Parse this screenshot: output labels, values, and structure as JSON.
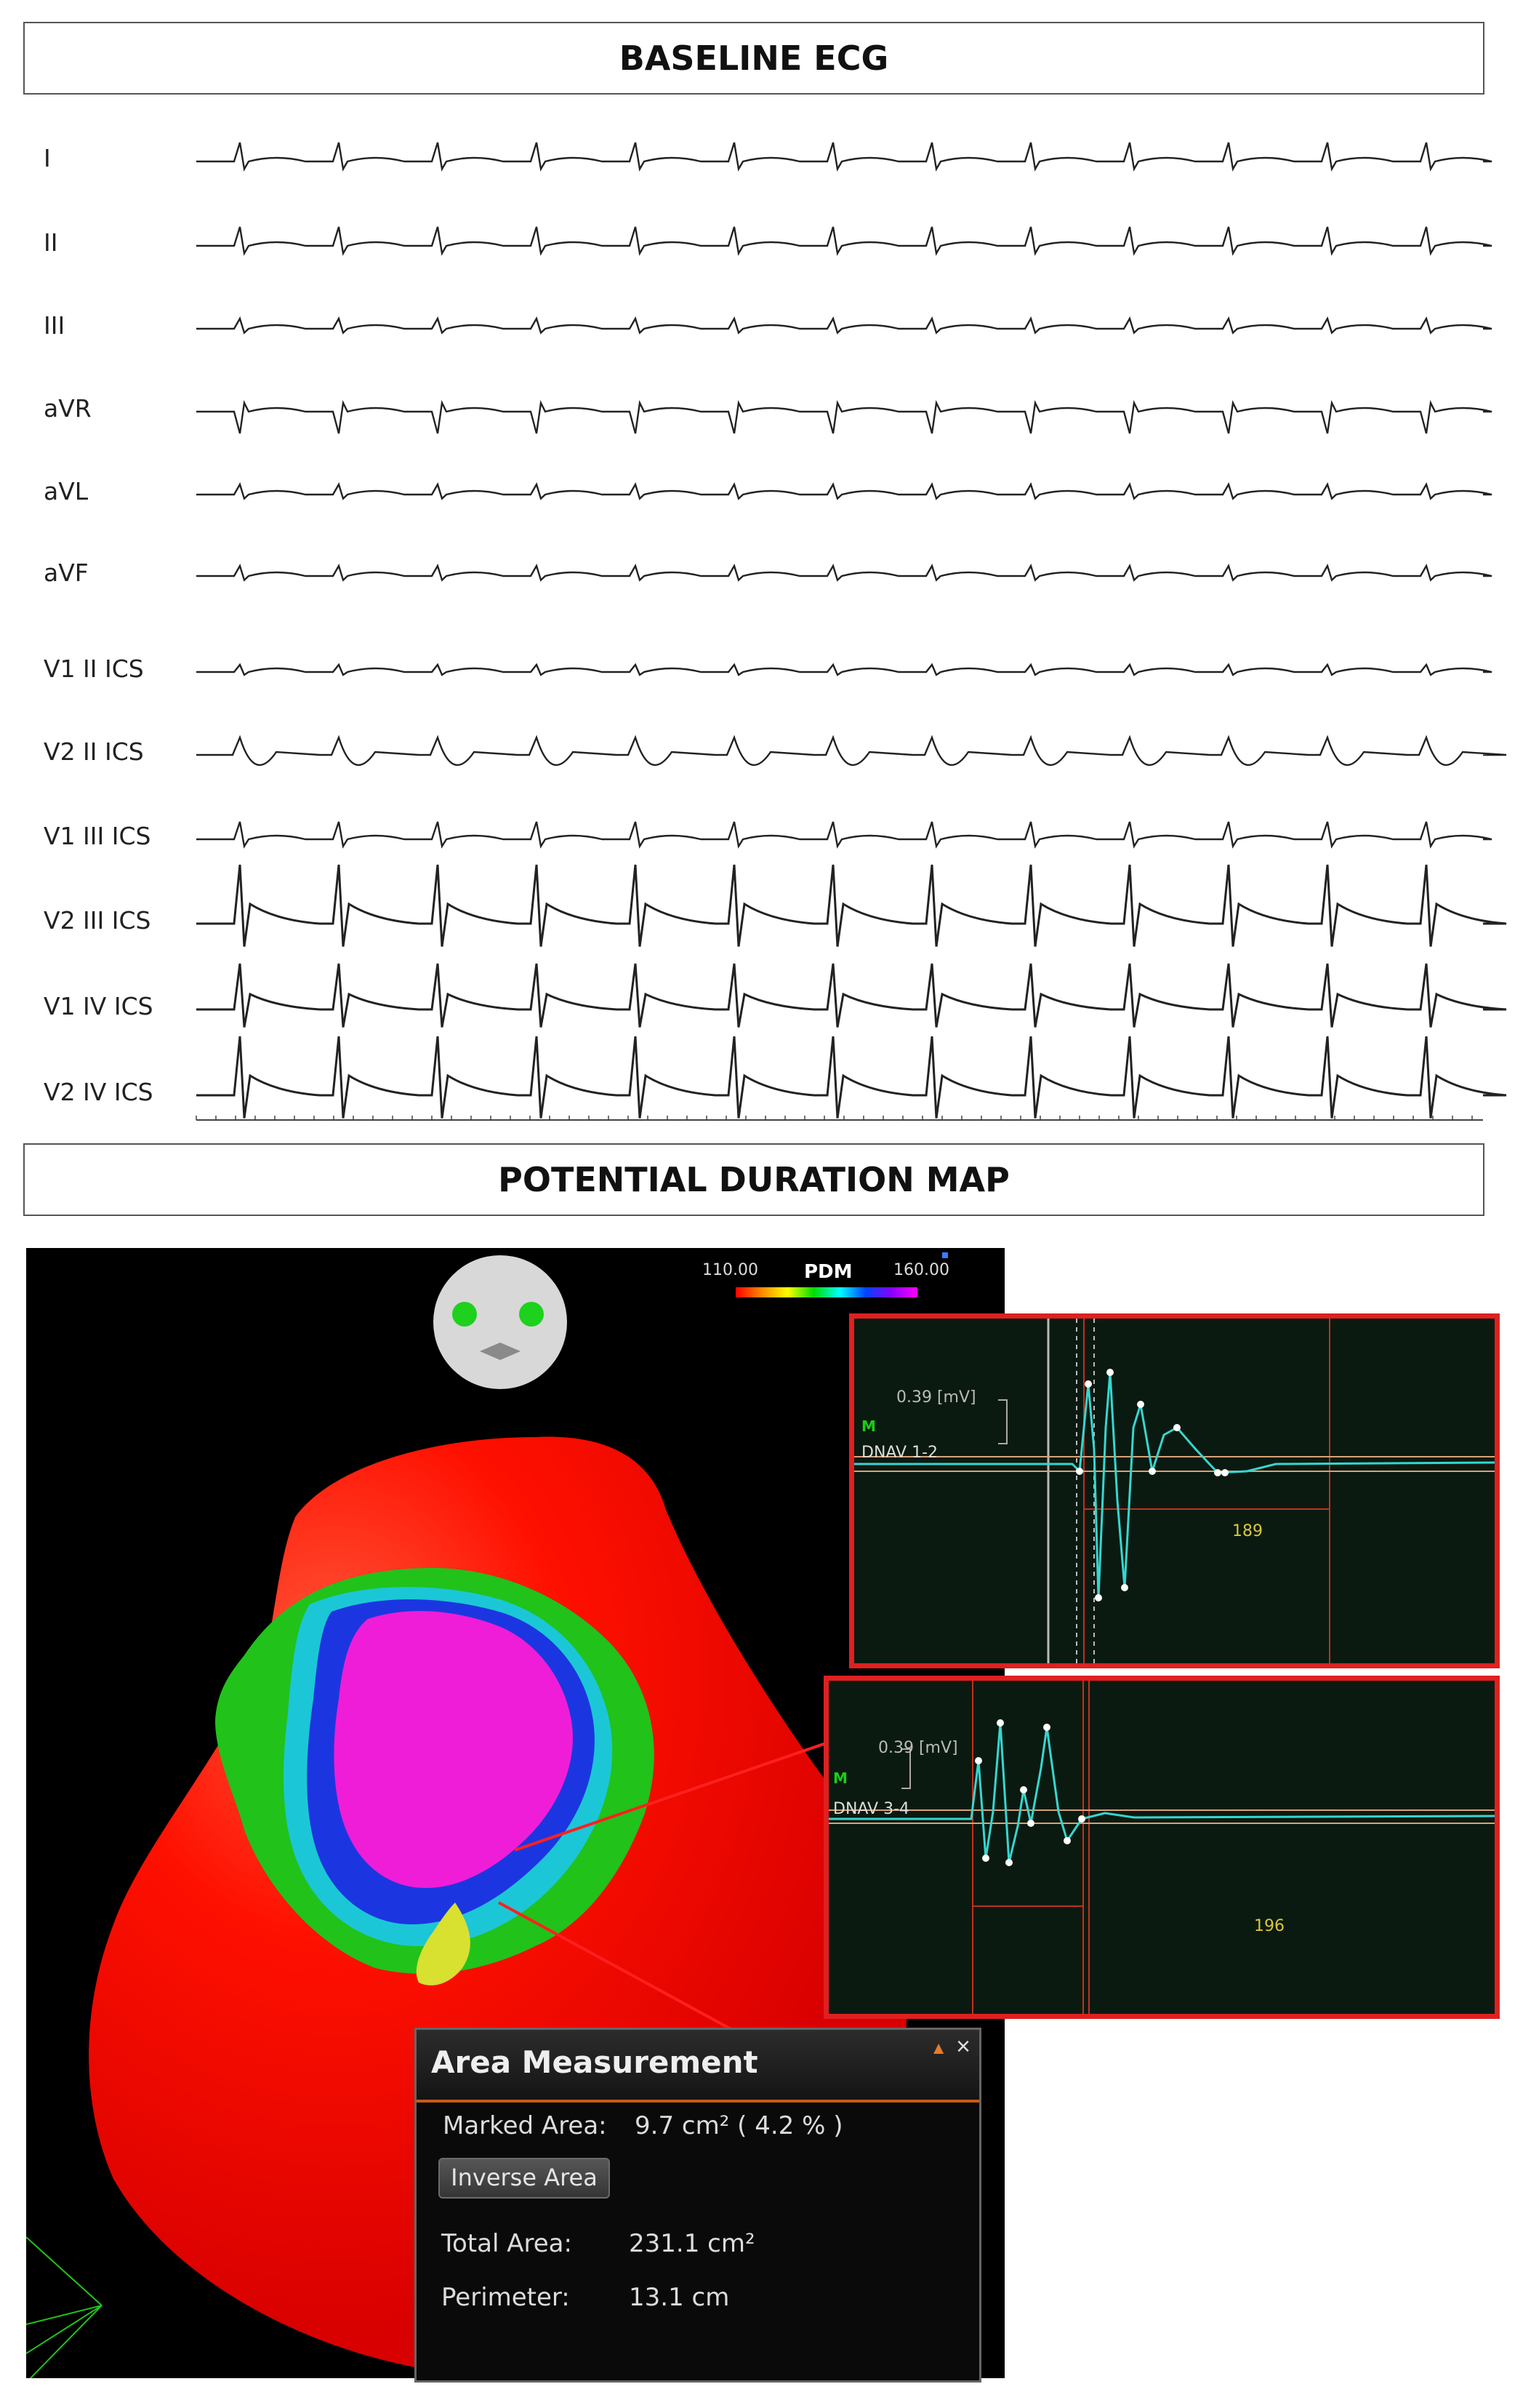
{
  "baseline_title": "BASELINE ECG",
  "pdm_title": "POTENTIAL DURATION MAP",
  "leads": [
    "I",
    "II",
    "III",
    "aVR",
    "aVL",
    "aVF",
    "V1 II ICS",
    "V2 II ICS",
    "V1 III ICS",
    "V2 III ICS",
    "V1 IV ICS",
    "V2 IV ICS"
  ],
  "legend": {
    "min": "110.00",
    "title": "PDM",
    "max": "160.00"
  },
  "egm_panels": [
    {
      "scale": "0.39  [mV]",
      "channel": "DNAV 1-2",
      "marker": "M",
      "duration": "189"
    },
    {
      "scale": "0.39  [mV]",
      "channel": "DNAV 3-4",
      "marker": "M",
      "duration": "196"
    }
  ],
  "area_measurement": {
    "title": "Area Measurement",
    "marked_area_label": "Marked Area:",
    "marked_area_value": "9.7 cm² (  4.2 %  )",
    "inverse_button": "Inverse Area",
    "total_area_label": "Total Area:",
    "total_area_value": "231.1 cm²",
    "perimeter_label": "Perimeter:",
    "perimeter_value": "13.1 cm"
  },
  "colors": {
    "map_red": "#ff0000",
    "accent": "#c85a14",
    "egm_trace": "#36d6d0",
    "panel_border": "#e02020"
  }
}
